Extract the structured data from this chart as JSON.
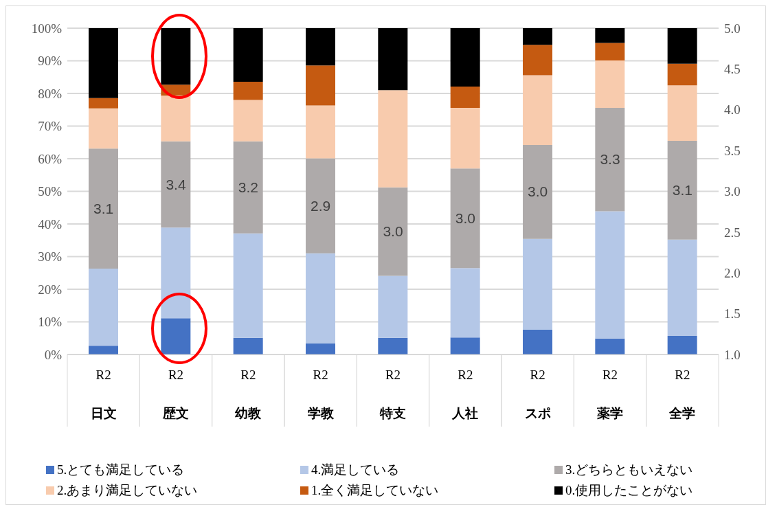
{
  "chart_data": {
    "type": "bar",
    "stacked": true,
    "categories": [
      "R2\n日文",
      "R2\n歴文",
      "R2\n幼教",
      "R2\n学教",
      "R2\n特支",
      "R2\n人社",
      "R2\nスポ",
      "R2\n薬学",
      "R2\n全学"
    ],
    "series": [
      {
        "name": "5.とても満足している",
        "color": "#4472c4",
        "values": [
          2.7,
          11.1,
          5.1,
          3.4,
          5.1,
          5.2,
          7.6,
          4.9,
          5.7
        ]
      },
      {
        "name": "4.満足している",
        "color": "#b4c7e7",
        "values": [
          23.6,
          27.8,
          32.0,
          27.6,
          19.0,
          21.3,
          27.8,
          39.0,
          29.5
        ]
      },
      {
        "name": "3.どちらともいえない",
        "color": "#aeaaaa",
        "values": [
          36.8,
          26.4,
          28.2,
          29.1,
          27.1,
          30.5,
          28.8,
          31.7,
          30.3
        ]
      },
      {
        "name": "2.あまり満足していない",
        "color": "#f8cbad",
        "values": [
          12.3,
          14.0,
          12.7,
          16.2,
          29.8,
          18.6,
          21.4,
          14.5,
          17.0
        ]
      },
      {
        "name": "1.全く満足していない",
        "color": "#c55a11",
        "values": [
          3.2,
          3.4,
          5.6,
          12.3,
          0,
          6.5,
          9.3,
          5.4,
          6.6
        ]
      },
      {
        "name": "0.使用したことがない",
        "color": "#000000",
        "values": [
          21.4,
          17.3,
          16.4,
          11.4,
          19.0,
          17.9,
          5.1,
          4.5,
          10.9
        ]
      }
    ],
    "ylim": [
      0,
      100
    ],
    "yticks": [
      {
        "value": 0,
        "label": "0%"
      },
      {
        "value": 10,
        "label": "10%"
      },
      {
        "value": 20,
        "label": "20%"
      },
      {
        "value": 30,
        "label": "30%"
      },
      {
        "value": 40,
        "label": "40%"
      },
      {
        "value": 50,
        "label": "50%"
      },
      {
        "value": 60,
        "label": "60%"
      },
      {
        "value": 70,
        "label": "70%"
      },
      {
        "value": 80,
        "label": "80%"
      },
      {
        "value": 90,
        "label": "90%"
      },
      {
        "value": 100,
        "label": "100%"
      }
    ],
    "y2lim": [
      1,
      5
    ],
    "y2ticks": [
      {
        "value": 1,
        "label": "1.0"
      },
      {
        "value": 1.5,
        "label": "1.5"
      },
      {
        "value": 2,
        "label": "2.0"
      },
      {
        "value": 2.5,
        "label": "2.5"
      },
      {
        "value": 3,
        "label": "3.0"
      },
      {
        "value": 3.5,
        "label": "3.5"
      },
      {
        "value": 4,
        "label": "4.0"
      },
      {
        "value": 4.5,
        "label": "4.5"
      },
      {
        "value": 5,
        "label": "5.0"
      }
    ],
    "annotations": [
      "3.1",
      "3.4",
      "3.2",
      "2.9",
      "3.0",
      "3.0",
      "3.0",
      "3.3",
      "3.1"
    ],
    "grid": "y",
    "legend": "bottom"
  }
}
